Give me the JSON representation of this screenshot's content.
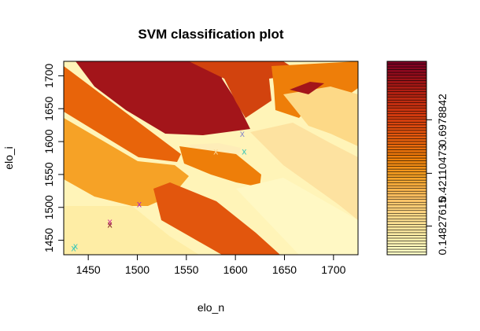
{
  "chart_data": {
    "type": "heatmap",
    "title": "SVM classification plot",
    "xlabel": "elo_n",
    "ylabel": "elo_i",
    "xlim": [
      1425,
      1725
    ],
    "ylim": [
      1428,
      1722
    ],
    "x_ticks": [
      1450,
      1500,
      1550,
      1600,
      1650,
      1700
    ],
    "y_ticks": [
      1450,
      1500,
      1550,
      1600,
      1650,
      1700
    ],
    "palette": [
      "#FFFFC8",
      "#FEEDA5",
      "#FDD987",
      "#FBBD5F",
      "#F6A226",
      "#EE7E09",
      "#E85E0D",
      "#D73F0E",
      "#BE2A10",
      "#A11516",
      "#7D0025"
    ],
    "color_key": {
      "range": [
        0.0,
        1.0
      ],
      "levels": 70,
      "tick_labels": [
        "0.14827615",
        "0.42110473",
        "0.6978842"
      ],
      "tick_values": [
        0.14827615,
        0.42110473,
        0.6978842
      ]
    },
    "points": [
      {
        "x": 1437,
        "y": 1441,
        "marker": "x",
        "color": "#3DC6B8"
      },
      {
        "x": 1435,
        "y": 1438,
        "marker": "x",
        "color": "#3DC6B8"
      },
      {
        "x": 1472,
        "y": 1478,
        "marker": "x",
        "color": "#D020A0"
      },
      {
        "x": 1472,
        "y": 1474,
        "marker": "x",
        "color": "#7A1418"
      },
      {
        "x": 1502,
        "y": 1505,
        "marker": "x",
        "color": "#B02ABF"
      },
      {
        "x": 1580,
        "y": 1585,
        "marker": "x",
        "color": "#FBD99A"
      },
      {
        "x": 1609,
        "y": 1585,
        "marker": "x",
        "color": "#3DC6B8"
      },
      {
        "x": 1607,
        "y": 1612,
        "marker": "x",
        "color": "#8A8AC8"
      }
    ]
  }
}
